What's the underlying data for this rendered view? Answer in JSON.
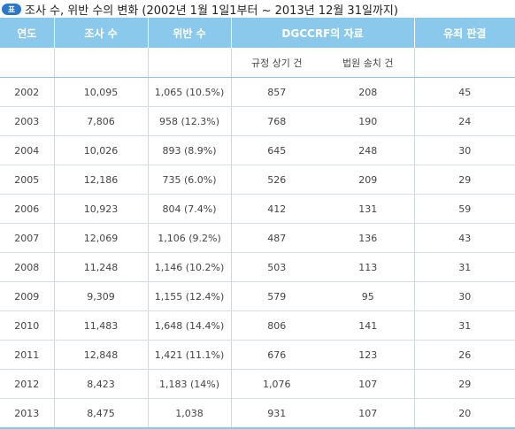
{
  "caption": {
    "badge": "표",
    "text": "조사 수, 위반 수의 변화 (2002년 1월 1일1부터 ~ 2013년 12월 31일까지)"
  },
  "header": {
    "year": "연도",
    "inspections": "조사 수",
    "violations": "위반 수",
    "dgccrf": "DGCCRF의 자료",
    "convictions": "유죄 판결",
    "sub_regulation": "규정 상기 건",
    "sub_court": "법원 송치 건"
  },
  "rows": [
    {
      "year": "2002",
      "inspections": "10,095",
      "violations": "1,065 (10.5%)",
      "regulation": "857",
      "court": "208",
      "convictions": "45"
    },
    {
      "year": "2003",
      "inspections": "7,806",
      "violations": "958 (12.3%)",
      "regulation": "768",
      "court": "190",
      "convictions": "24"
    },
    {
      "year": "2004",
      "inspections": "10,026",
      "violations": "893 (8.9%)",
      "regulation": "645",
      "court": "248",
      "convictions": "30"
    },
    {
      "year": "2005",
      "inspections": "12,186",
      "violations": "735 (6.0%)",
      "regulation": "526",
      "court": "209",
      "convictions": "29"
    },
    {
      "year": "2006",
      "inspections": "10,923",
      "violations": "804 (7.4%)",
      "regulation": "412",
      "court": "131",
      "convictions": "59"
    },
    {
      "year": "2007",
      "inspections": "12,069",
      "violations": "1,106 (9.2%)",
      "regulation": "487",
      "court": "136",
      "convictions": "43"
    },
    {
      "year": "2008",
      "inspections": "11,248",
      "violations": "1,146 (10.2%)",
      "regulation": "503",
      "court": "113",
      "convictions": "31"
    },
    {
      "year": "2009",
      "inspections": "9,309",
      "violations": "1,155 (12.4%)",
      "regulation": "579",
      "court": "95",
      "convictions": "30"
    },
    {
      "year": "2010",
      "inspections": "11,483",
      "violations": "1,648 (14.4%)",
      "regulation": "806",
      "court": "141",
      "convictions": "31"
    },
    {
      "year": "2011",
      "inspections": "12,848",
      "violations": "1,421 (11.1%)",
      "regulation": "676",
      "court": "123",
      "convictions": "26"
    },
    {
      "year": "2012",
      "inspections": "8,423",
      "violations": "1,183 (14%)",
      "regulation": "1,076",
      "court": "107",
      "convictions": "29"
    },
    {
      "year": "2013",
      "inspections": "8,475",
      "violations": "1,038",
      "regulation": "931",
      "court": "107",
      "convictions": "20"
    }
  ],
  "colors": {
    "header_bg": "#8bc9ec",
    "badge_bg": "#2b78c8"
  }
}
